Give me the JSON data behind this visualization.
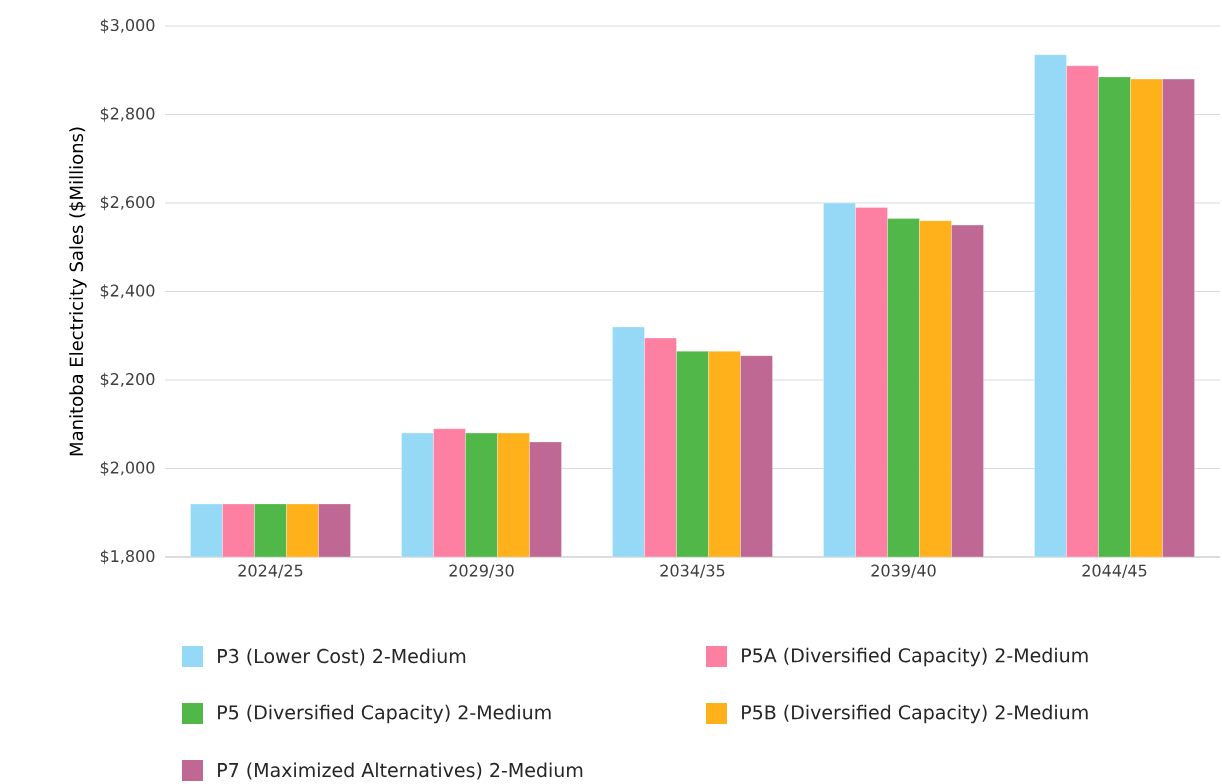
{
  "chart_data": {
    "type": "bar",
    "ylabel": "Manitoba Electricity Sales ($Millions)",
    "categories": [
      "2024/25",
      "2029/30",
      "2034/35",
      "2039/40",
      "2044/45"
    ],
    "series": [
      {
        "name": "P3 (Lower Cost) 2-Medium",
        "color": "#95d9f7",
        "values": [
          1920,
          2080,
          2320,
          2600,
          2935
        ]
      },
      {
        "name": "P5A (Diversified Capacity) 2-Medium",
        "color": "#fd80a3",
        "values": [
          1920,
          2090,
          2295,
          2590,
          2910
        ]
      },
      {
        "name": "P5 (Diversified Capacity) 2-Medium",
        "color": "#50b748",
        "values": [
          1920,
          2080,
          2265,
          2565,
          2885
        ]
      },
      {
        "name": "P5B (Diversified Capacity) 2-Medium",
        "color": "#feb11a",
        "values": [
          1920,
          2080,
          2265,
          2560,
          2880
        ]
      },
      {
        "name": "P7 (Maximized Alternatives) 2-Medium",
        "color": "#bf6893",
        "values": [
          1920,
          2060,
          2255,
          2550,
          2880
        ]
      }
    ],
    "ylim": [
      1800,
      3000
    ],
    "yticks": [
      {
        "value": 1800,
        "label": "$1,800"
      },
      {
        "value": 2000,
        "label": "$2,000"
      },
      {
        "value": 2200,
        "label": "$2,200"
      },
      {
        "value": 2400,
        "label": "$2,400"
      },
      {
        "value": 2600,
        "label": "$2,600"
      },
      {
        "value": 2800,
        "label": "$2,800"
      },
      {
        "value": 3000,
        "label": "$3,000"
      }
    ],
    "grid": "y",
    "legend": "bottom"
  }
}
